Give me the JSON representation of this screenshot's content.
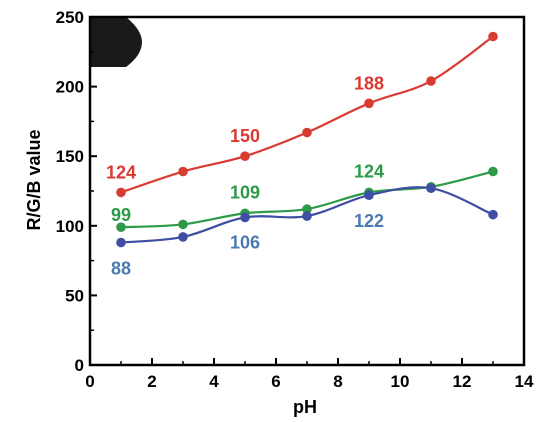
{
  "chart_data": {
    "type": "line",
    "xlabel": "pH",
    "ylabel": "R/G/B value",
    "xlim": [
      0,
      14
    ],
    "ylim": [
      0,
      250
    ],
    "xticks": [
      0,
      2,
      4,
      6,
      8,
      10,
      12,
      14
    ],
    "yticks": [
      0,
      50,
      100,
      150,
      200,
      250
    ],
    "grid": false,
    "legend": "none",
    "series": [
      {
        "color": "#d93a32",
        "x": [
          1,
          3,
          5,
          7,
          9,
          11,
          13
        ],
        "values": [
          124,
          139,
          150,
          167,
          188,
          204,
          236
        ]
      },
      {
        "color": "#2c9a48",
        "x": [
          1,
          3,
          5,
          7,
          9,
          11,
          13
        ],
        "values": [
          99,
          101,
          109,
          112,
          124,
          128,
          139
        ]
      },
      {
        "color": "#3d4ea3",
        "x": [
          1,
          3,
          5,
          7,
          9,
          11,
          13
        ],
        "values": [
          88,
          92,
          106,
          107,
          122,
          127,
          108
        ]
      }
    ],
    "annotations": [
      {
        "text": "124",
        "series": 0,
        "x": 1,
        "color": "#d93a32"
      },
      {
        "text": "150",
        "series": 0,
        "x": 5,
        "color": "#d93a32"
      },
      {
        "text": "188",
        "series": 0,
        "x": 9,
        "color": "#d93a32"
      },
      {
        "text": "99",
        "series": 1,
        "x": 1,
        "color": "#2c9a48"
      },
      {
        "text": "109",
        "series": 1,
        "x": 5,
        "color": "#2c9a48"
      },
      {
        "text": "124",
        "series": 1,
        "x": 9,
        "color": "#2c9a48"
      },
      {
        "text": "88",
        "series": 2,
        "x": 1,
        "color": "#4a7ab0"
      },
      {
        "text": "106",
        "series": 2,
        "x": 5,
        "color": "#4a7ab0"
      },
      {
        "text": "122",
        "series": 2,
        "x": 9,
        "color": "#4a7ab0"
      }
    ]
  }
}
